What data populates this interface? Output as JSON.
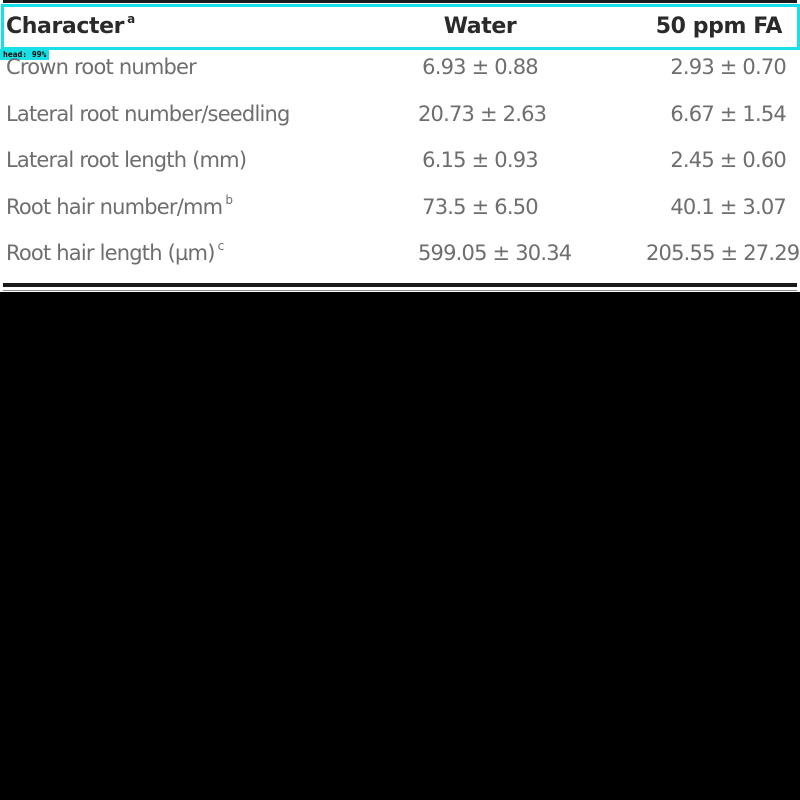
{
  "table": {
    "headers": {
      "character": "Character",
      "character_sup": "a",
      "water": "Water",
      "fa": "50 ppm FA"
    },
    "rows": [
      {
        "character": "Crown root number",
        "sup": "",
        "water": "6.93 ± 0.88",
        "fa": "2.93 ± 0.70"
      },
      {
        "character": "Lateral root number/seedling",
        "sup": "",
        "water": "20.73 ± 2.63",
        "fa": "6.67 ± 1.54"
      },
      {
        "character": "Lateral root length (mm)",
        "sup": "",
        "water": "6.15 ± 0.93",
        "fa": "2.45 ± 0.60"
      },
      {
        "character": "Root hair number/mm",
        "sup": "b",
        "water": "73.5 ± 6.50",
        "fa": "40.1 ± 3.07"
      },
      {
        "character": "Root hair length (µm)",
        "sup": "c",
        "water": "599.05 ± 30.34",
        "fa": "205.55 ± 27.29"
      }
    ]
  },
  "detection": {
    "label": "head: 99%",
    "color": "#19e0e6"
  }
}
